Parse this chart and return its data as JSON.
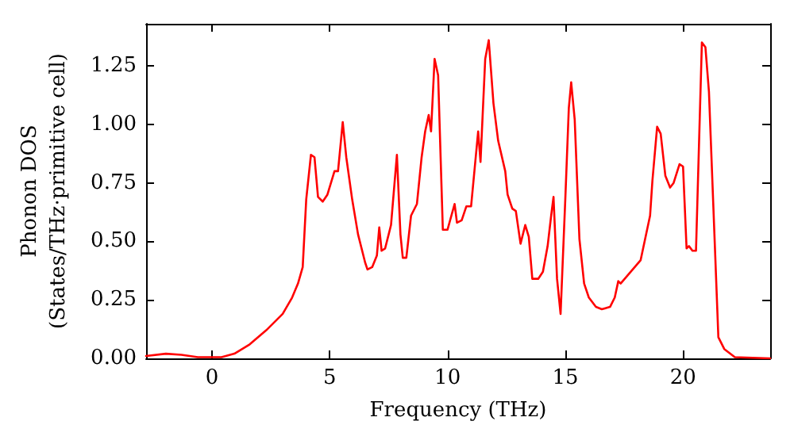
{
  "chart_data": {
    "type": "line",
    "xlabel": "Frequency (THz)",
    "ylabel": "Phonon DOS\n(States/THz·primitive cell)",
    "xlim": [
      -2.8,
      23.7
    ],
    "xticks": [
      0,
      5,
      10,
      15,
      20
    ],
    "ylim": [
      0,
      1.43
    ],
    "yticks": [
      {
        "value": 0,
        "label": "0.00"
      },
      {
        "value": 0.25,
        "label": "0.25"
      },
      {
        "value": 0.5,
        "label": "0.50"
      },
      {
        "value": 0.75,
        "label": "0.75"
      },
      {
        "value": 1,
        "label": "1.00"
      },
      {
        "value": 1.25,
        "label": "1.25"
      }
    ],
    "marker": "none",
    "line_style": "solid",
    "series": [
      {
        "color": "#ff0000",
        "x": [
          -2.8,
          -1.96,
          -1.3,
          -0.6,
          0.4,
          0.95,
          1.6,
          2.3,
          3.0,
          3.4,
          3.65,
          3.85,
          4.0,
          4.2,
          4.35,
          4.5,
          4.7,
          4.9,
          5.2,
          5.35,
          5.55,
          5.7,
          5.95,
          6.2,
          6.5,
          6.6,
          6.8,
          7.0,
          7.1,
          7.2,
          7.35,
          7.5,
          7.6,
          7.85,
          8.0,
          8.1,
          8.25,
          8.45,
          8.7,
          8.9,
          9.05,
          9.2,
          9.3,
          9.45,
          9.6,
          9.8,
          10.0,
          10.3,
          10.4,
          10.6,
          10.8,
          11.0,
          11.3,
          11.4,
          11.6,
          11.75,
          11.95,
          12.15,
          12.45,
          12.55,
          12.75,
          12.9,
          13.1,
          13.3,
          13.45,
          13.6,
          13.85,
          14.05,
          14.25,
          14.4,
          14.5,
          14.65,
          14.8,
          15.0,
          15.15,
          15.25,
          15.4,
          15.6,
          15.8,
          16.0,
          16.3,
          16.55,
          16.9,
          17.1,
          17.25,
          17.35,
          18.2,
          18.6,
          18.7,
          18.9,
          19.05,
          19.25,
          19.45,
          19.6,
          19.85,
          20.0,
          20.15,
          20.25,
          20.4,
          20.55,
          20.8,
          20.95,
          21.1,
          21.5,
          21.75,
          22.2,
          23.7
        ],
        "values": [
          0.01,
          0.02,
          0.015,
          0.005,
          0.005,
          0.02,
          0.06,
          0.12,
          0.19,
          0.26,
          0.32,
          0.39,
          0.68,
          0.87,
          0.86,
          0.69,
          0.67,
          0.7,
          0.8,
          0.8,
          1.01,
          0.86,
          0.68,
          0.53,
          0.41,
          0.38,
          0.39,
          0.44,
          0.56,
          0.46,
          0.47,
          0.53,
          0.57,
          0.87,
          0.53,
          0.43,
          0.43,
          0.61,
          0.66,
          0.86,
          0.97,
          1.04,
          0.97,
          1.28,
          1.21,
          0.55,
          0.55,
          0.66,
          0.58,
          0.59,
          0.65,
          0.65,
          0.97,
          0.84,
          1.28,
          1.36,
          1.09,
          0.93,
          0.8,
          0.7,
          0.64,
          0.63,
          0.49,
          0.57,
          0.52,
          0.34,
          0.34,
          0.37,
          0.48,
          0.61,
          0.69,
          0.34,
          0.19,
          0.68,
          1.07,
          1.18,
          1.02,
          0.51,
          0.32,
          0.26,
          0.22,
          0.21,
          0.22,
          0.26,
          0.33,
          0.32,
          0.42,
          0.61,
          0.76,
          0.99,
          0.96,
          0.78,
          0.73,
          0.75,
          0.83,
          0.82,
          0.47,
          0.48,
          0.46,
          0.46,
          1.35,
          1.33,
          1.14,
          0.09,
          0.04,
          0.005,
          0
        ]
      }
    ]
  }
}
